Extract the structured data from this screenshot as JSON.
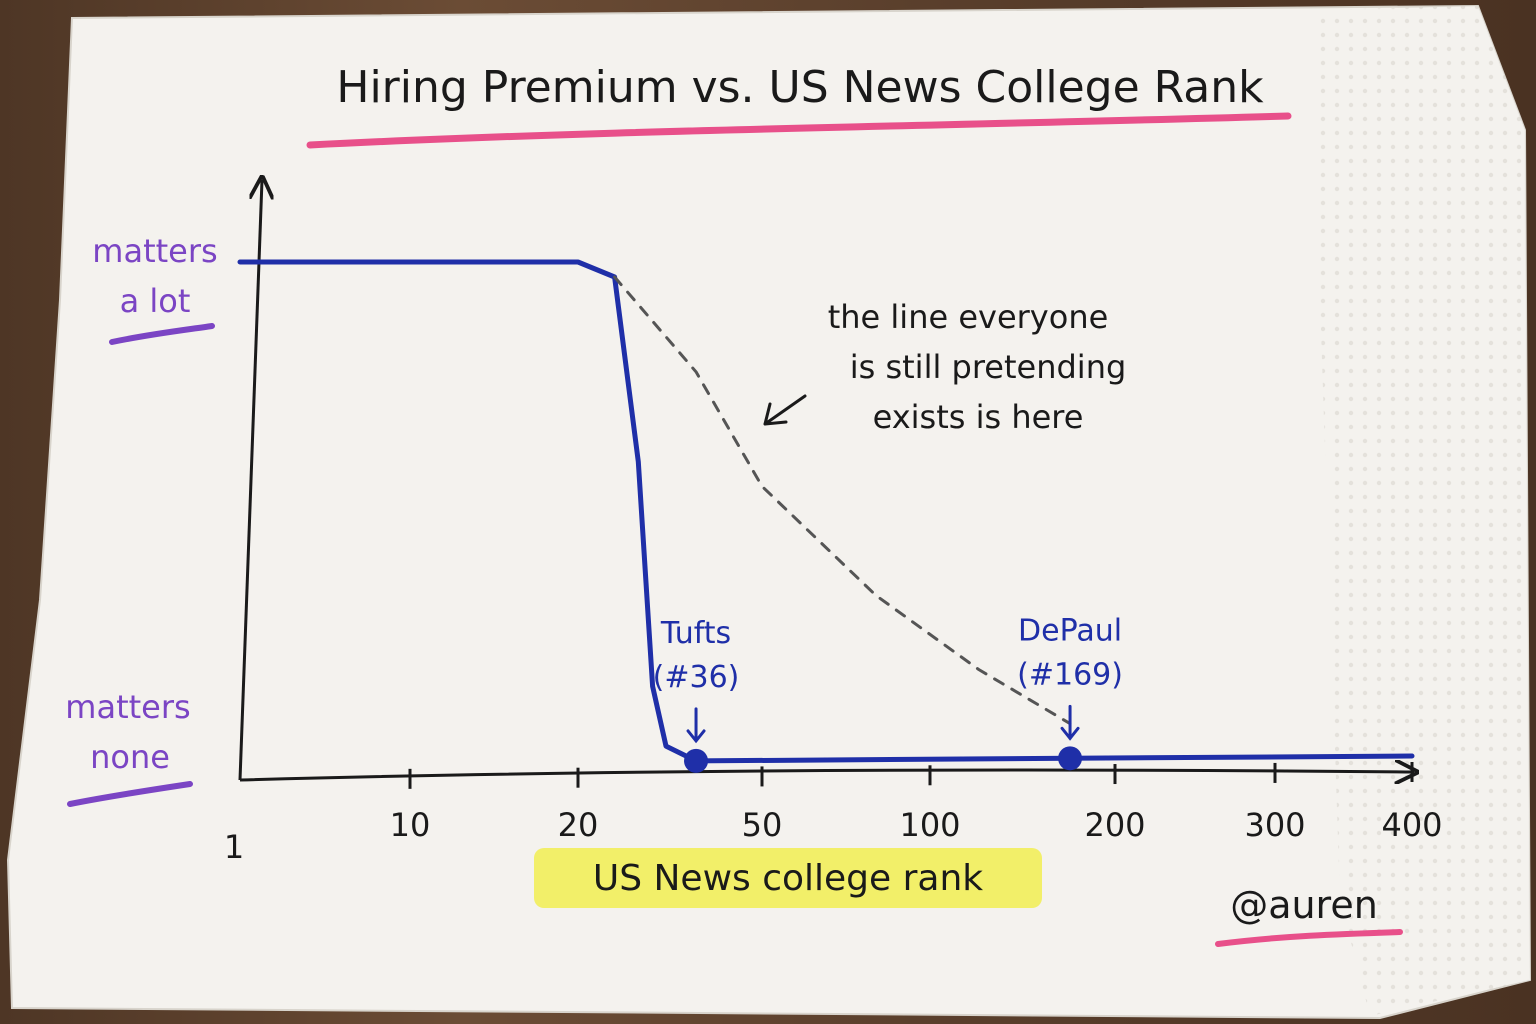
{
  "chart_data": {
    "type": "line",
    "title": "Hiring Premium vs. US News College Rank",
    "xlabel": "US News college rank",
    "ylabel": "",
    "x_scale": "log",
    "x_ticks": [
      "1",
      "10",
      "20",
      "50",
      "100",
      "200",
      "300",
      "400"
    ],
    "y_ticks": [
      {
        "line1": "matters",
        "line2": "a lot"
      },
      {
        "line1": "matters",
        "line2": "none"
      }
    ],
    "series": [
      {
        "style": "solid",
        "color": "#1f2fa8",
        "points": [
          [
            1,
            1.0
          ],
          [
            20,
            1.0
          ],
          [
            24,
            0.97
          ],
          [
            27,
            0.6
          ],
          [
            29,
            0.15
          ],
          [
            31,
            0.03
          ],
          [
            36,
            0.0
          ],
          [
            169,
            0.0
          ],
          [
            400,
            0.0
          ]
        ]
      },
      {
        "style": "dashed",
        "color": "#555555",
        "points": [
          [
            24,
            0.97
          ],
          [
            36,
            0.78
          ],
          [
            50,
            0.55
          ],
          [
            80,
            0.33
          ],
          [
            120,
            0.18
          ],
          [
            169,
            0.07
          ]
        ]
      }
    ],
    "markers": [
      {
        "x": 36,
        "label_line1": "Tufts",
        "label_line2": "(#36)"
      },
      {
        "x": 169,
        "label_line1": "DePaul",
        "label_line2": "(#169)"
      }
    ],
    "annotation": [
      "the line everyone",
      "is still pretending",
      "exists is here"
    ],
    "grid": false,
    "legend": "none"
  },
  "signature": "@auren",
  "colors": {
    "napkin": "#f4f2ee",
    "axis": "#1a1a1a",
    "solid_line": "#1f2fa8",
    "dashed_line": "#555555",
    "title_underline": "#e8508a",
    "ytick_label": "#7b45c4",
    "ytick_underline": "#7b45c4",
    "xlabel_highlight": "#f2ee5a",
    "marker_label": "#1f2fa8"
  }
}
